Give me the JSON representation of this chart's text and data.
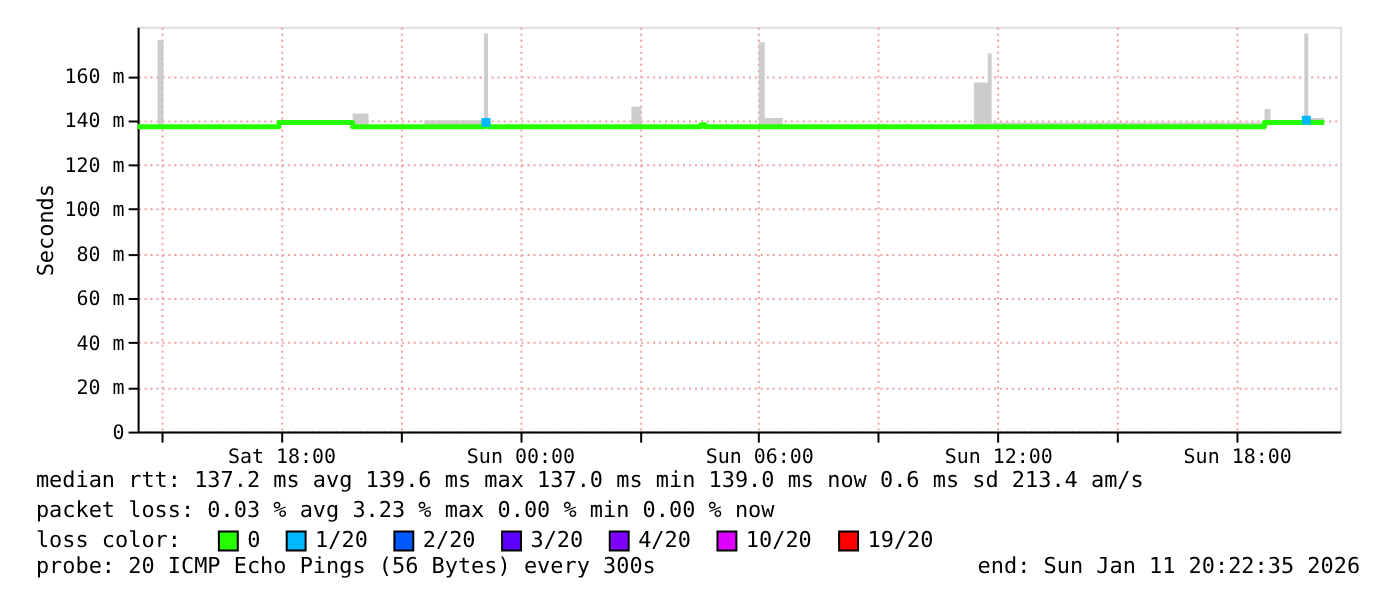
{
  "chart_data": {
    "type": "line",
    "ylabel": "Seconds",
    "legend_title": "loss color:",
    "legend": "bottom",
    "grid": true,
    "xlim": [
      "2026-01-10T14:24",
      "2026-01-11T20:36"
    ],
    "xticks": [
      {
        "value": "2026-01-10T15:00",
        "label": null
      },
      {
        "value": "2026-01-10T18:00",
        "label": "Sat 18:00"
      },
      {
        "value": "2026-01-10T21:00",
        "label": null
      },
      {
        "value": "2026-01-11T00:00",
        "label": "Sun 00:00"
      },
      {
        "value": "2026-01-11T03:00",
        "label": null
      },
      {
        "value": "2026-01-11T06:00",
        "label": "Sun 06:00"
      },
      {
        "value": "2026-01-11T09:00",
        "label": null
      },
      {
        "value": "2026-01-11T12:00",
        "label": "Sun 12:00"
      },
      {
        "value": "2026-01-11T15:00",
        "label": null
      },
      {
        "value": "2026-01-11T18:00",
        "label": "Sun 18:00"
      }
    ],
    "ylim": [
      0,
      182
    ],
    "yticks": [
      0,
      {
        "value": 20,
        "label": "20 m"
      },
      {
        "value": 40,
        "label": "40 m"
      },
      {
        "value": 60,
        "label": "60 m"
      },
      {
        "value": 80,
        "label": "80 m"
      },
      {
        "value": 100,
        "label": "100 m"
      },
      {
        "value": 120,
        "label": "120 m"
      },
      {
        "value": 140,
        "label": "140 m"
      },
      {
        "value": 160,
        "label": "160 m"
      }
    ],
    "series": [
      {
        "name": "0",
        "color": "#26ff00",
        "x": [
          "2026-01-10T14:24",
          "2026-01-10T14:54",
          "2026-01-10T15:03",
          "2026-01-10T17:57",
          "2026-01-10T19:48",
          "2026-01-10T20:12",
          "2026-01-10T21:36",
          "2026-01-10T23:06",
          "2026-01-10T23:12",
          "2026-01-11T02:48",
          "2026-01-11T03:03",
          "2026-01-11T04:33",
          "2026-01-11T04:39",
          "2026-01-11T06:00",
          "2026-01-11T06:09",
          "2026-01-11T06:36",
          "2026-01-11T11:24",
          "2026-01-11T11:45",
          "2026-01-11T11:51",
          "2026-01-11T13:12",
          "2026-01-11T18:42",
          "2026-01-11T18:51",
          "2026-01-11T19:42",
          "2026-01-11T19:48",
          "2026-01-11T20:12"
        ],
        "values": [
          137,
          137,
          137,
          139,
          137,
          137,
          137,
          139,
          137,
          137,
          137,
          138,
          137,
          137,
          137,
          137,
          137,
          137,
          137,
          137,
          139,
          139,
          140,
          139,
          139
        ],
        "lower": [
          137,
          137,
          137,
          139,
          137,
          137,
          137,
          139,
          137,
          137,
          137,
          138,
          137,
          137,
          137,
          137,
          137,
          137,
          137,
          137,
          139,
          139,
          140,
          139,
          139
        ],
        "upper": [
          138,
          176,
          138,
          140,
          143,
          138,
          140,
          179,
          138,
          146,
          138,
          138,
          138,
          175,
          141,
          138,
          157,
          170,
          139,
          139,
          145,
          140,
          179,
          141,
          139
        ]
      },
      {
        "name": "1/20",
        "color": "#00b8ff",
        "type": "scatter",
        "x": [
          "2026-01-10T23:09",
          "2026-01-11T19:45"
        ],
        "values": [
          139,
          140
        ]
      },
      {
        "name": "2/20",
        "color": "#0059ff",
        "type": "scatter"
      },
      {
        "name": "3/20",
        "color": "#5e00ff",
        "type": "scatter"
      },
      {
        "name": "4/20",
        "color": "#7e00ff",
        "type": "scatter"
      },
      {
        "name": "10/20",
        "color": "#dd00ff",
        "type": "scatter"
      },
      {
        "name": "19/20",
        "color": "#ff0000",
        "type": "scatter"
      }
    ],
    "annotations": [
      "median rtt:  137.2 ms avg  139.6 ms max  137.0 ms min  139.0 ms now  0.6 ms sd  213.4   am/s",
      "packet loss: 0.03 % avg  3.23 % max  0.00 % min  0.00 % now",
      "probe:       20 ICMP Echo Pings (56 Bytes) every 300s",
      "end: Sun Jan 11 20:22:35 2026"
    ]
  }
}
